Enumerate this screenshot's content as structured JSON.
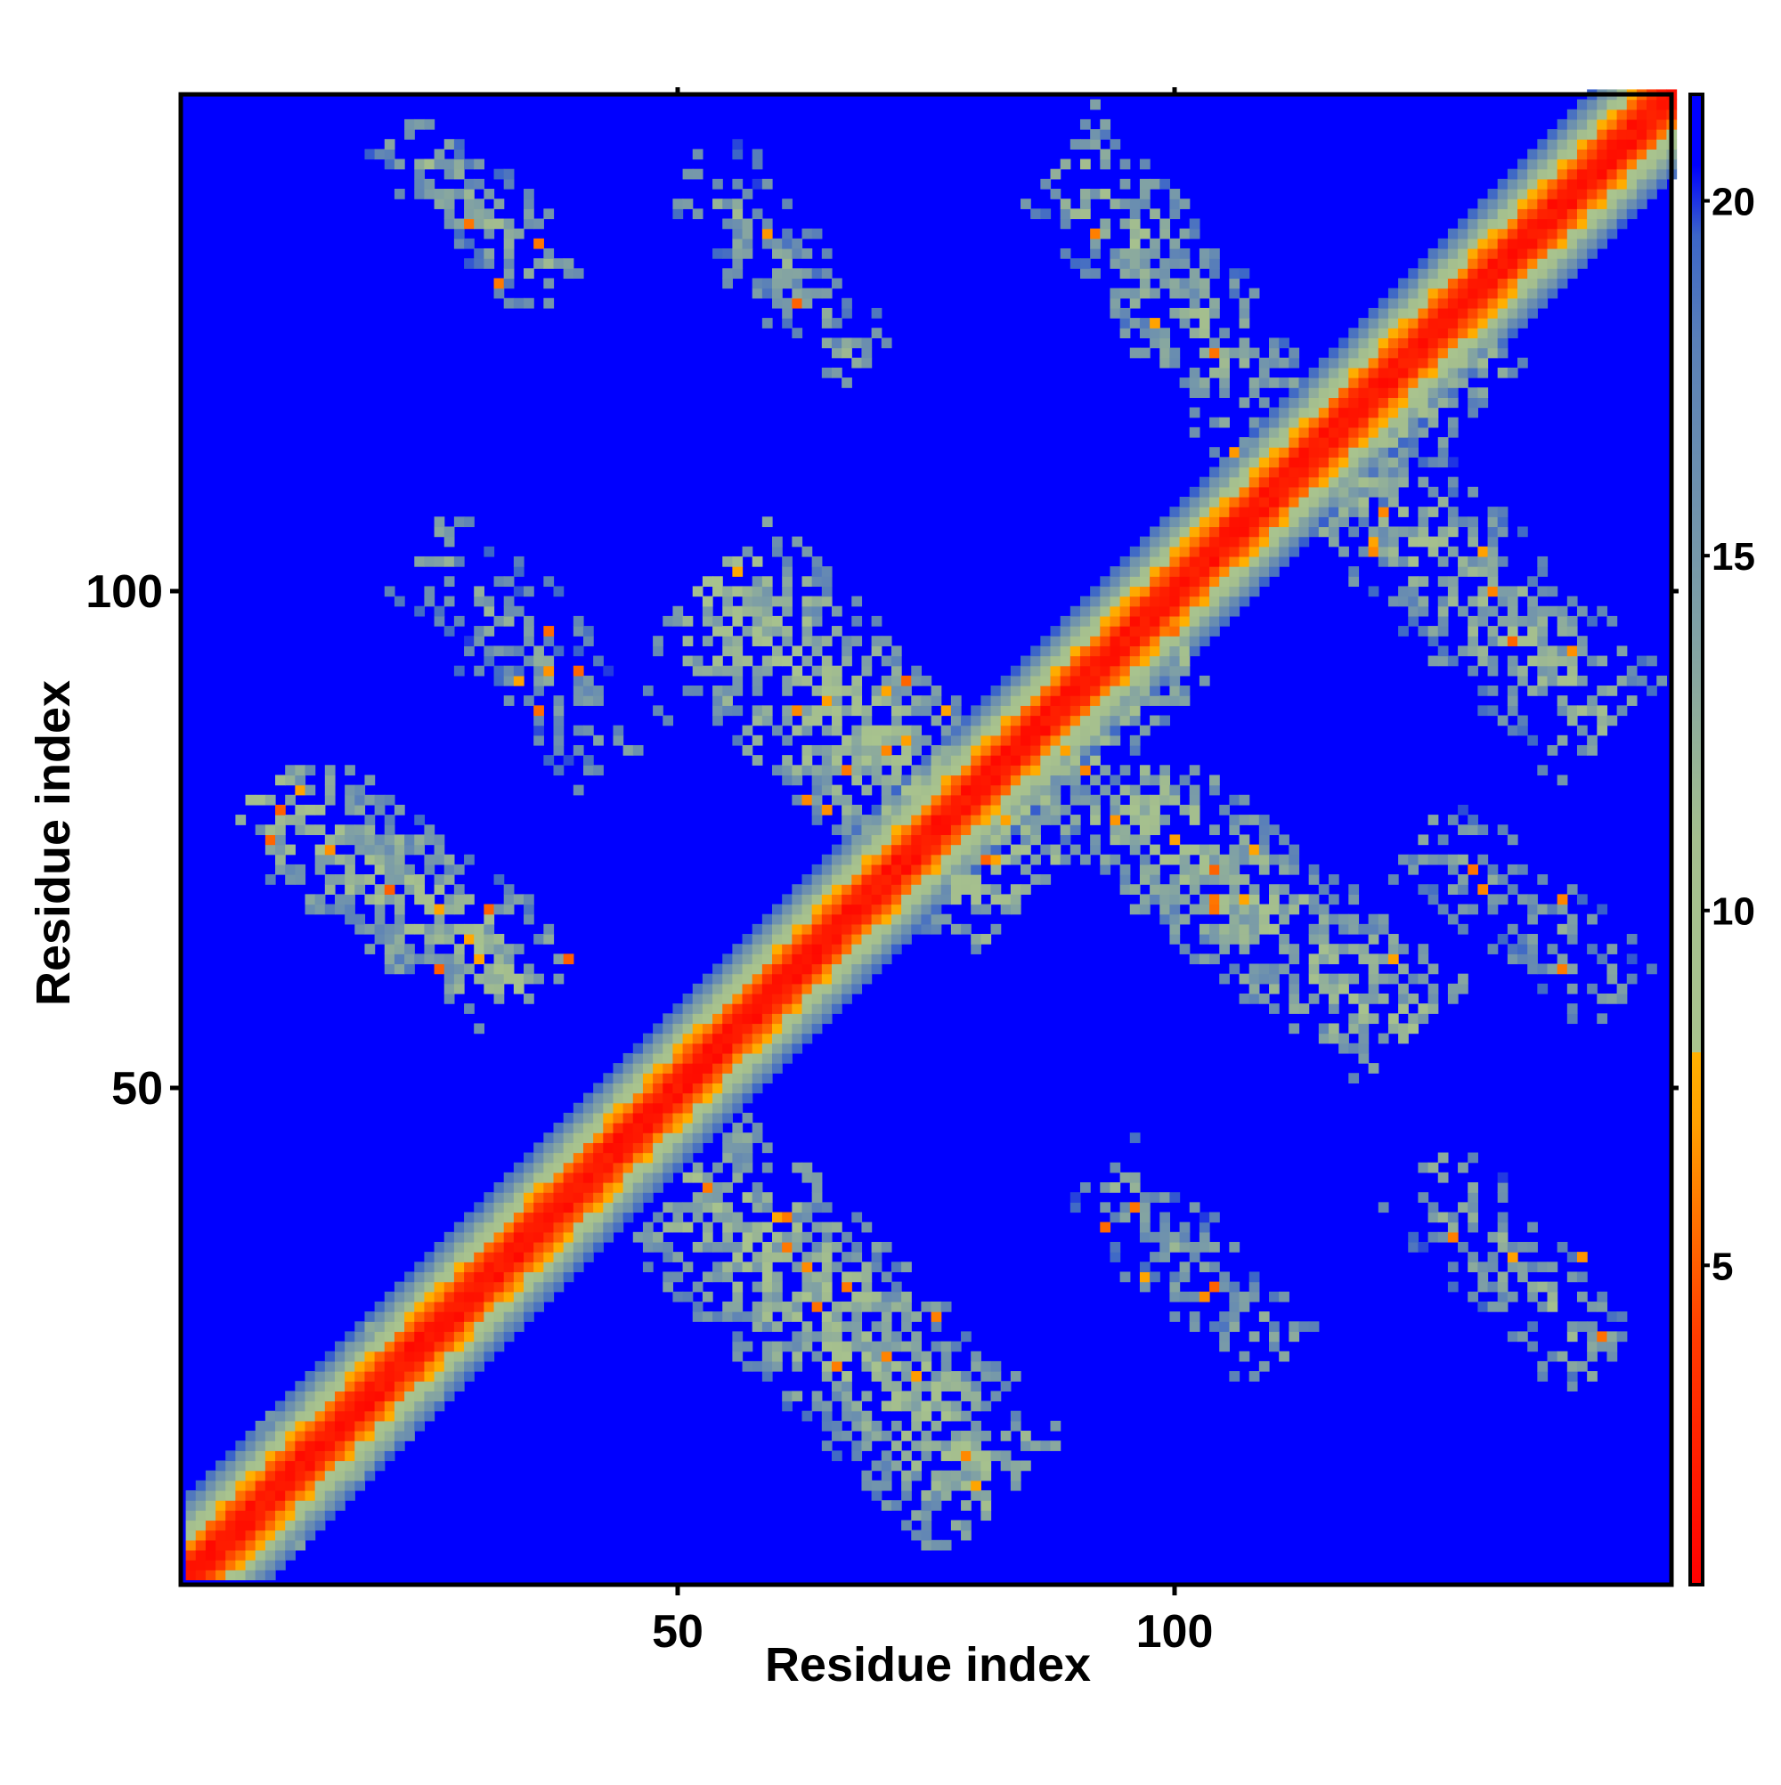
{
  "chart_data": {
    "type": "heatmap",
    "title": "",
    "xlabel": "Residue index",
    "ylabel": "Residue index",
    "n_residues": 150,
    "xlim": [
      1,
      150
    ],
    "ylim": [
      1,
      150
    ],
    "x_ticks": [
      {
        "value": 50,
        "label": "50"
      },
      {
        "value": 100,
        "label": "100"
      }
    ],
    "y_ticks": [
      {
        "value": 50,
        "label": "50"
      },
      {
        "value": 100,
        "label": "100"
      }
    ],
    "colorbar": {
      "range": [
        0.5,
        21.5
      ],
      "ticks": [
        {
          "value": 5,
          "label": "5"
        },
        {
          "value": 10,
          "label": "10"
        },
        {
          "value": 15,
          "label": "15"
        },
        {
          "value": 20,
          "label": "20"
        }
      ],
      "stops": [
        {
          "value": 0.5,
          "color": "#ff0000"
        },
        {
          "value": 4.0,
          "color": "#ff3c00"
        },
        {
          "value": 7.0,
          "color": "#ffa000"
        },
        {
          "value": 8.0,
          "color": "#ffb000"
        },
        {
          "value": 8.0,
          "color": "#a9c48e"
        },
        {
          "value": 11.0,
          "color": "#a4be8e"
        },
        {
          "value": 14.0,
          "color": "#7fa0a5"
        },
        {
          "value": 18.0,
          "color": "#5a80b8"
        },
        {
          "value": 19.5,
          "color": "#3c66c8"
        },
        {
          "value": 20.5,
          "color": "#0000ff"
        },
        {
          "value": 21.5,
          "color": "#0000ff"
        }
      ]
    },
    "value_cutoff": 20,
    "diagonal_band": {
      "width_residues": 8,
      "value_on_diagonal": 1,
      "value_at_edge": 19
    },
    "contact_regions": [
      {
        "kind": "anti",
        "x_range": [
          18,
          42
        ],
        "y_range": [
          127,
          150
        ],
        "mean": 13.5,
        "density": 0.62
      },
      {
        "kind": "anti",
        "x_range": [
          47,
          73
        ],
        "y_range": [
          118,
          148
        ],
        "mean": 14.0,
        "density": 0.55
      },
      {
        "kind": "anti",
        "x_range": [
          84,
          114
        ],
        "y_range": [
          112,
          150
        ],
        "mean": 12.5,
        "density": 0.72
      },
      {
        "kind": "anti",
        "x_range": [
          2,
          42
        ],
        "y_range": [
          55,
          85
        ],
        "mean": 11.5,
        "density": 0.82
      },
      {
        "kind": "anti",
        "x_range": [
          46,
          92
        ],
        "y_range": [
          62,
          108
        ],
        "mean": 11.0,
        "density": 0.86
      },
      {
        "kind": "anti",
        "x_range": [
          88,
          130
        ],
        "y_range": [
          50,
          85
        ],
        "mean": 11.5,
        "density": 0.84
      },
      {
        "kind": "anti",
        "x_range": [
          112,
          150
        ],
        "y_range": [
          80,
          118
        ],
        "mean": 12.5,
        "density": 0.75
      },
      {
        "kind": "anti",
        "x_range": [
          44,
          90
        ],
        "y_range": [
          2,
          48
        ],
        "mean": 11.5,
        "density": 0.84
      },
      {
        "kind": "anti",
        "x_range": [
          88,
          116
        ],
        "y_range": [
          18,
          46
        ],
        "mean": 14.0,
        "density": 0.55
      },
      {
        "kind": "anti",
        "x_range": [
          120,
          148
        ],
        "y_range": [
          18,
          46
        ],
        "mean": 13.5,
        "density": 0.62
      },
      {
        "kind": "anti",
        "x_range": [
          120,
          150
        ],
        "y_range": [
          55,
          80
        ],
        "mean": 14.0,
        "density": 0.55
      },
      {
        "kind": "anti",
        "x_range": [
          20,
          50
        ],
        "y_range": [
          78,
          110
        ],
        "mean": 14.5,
        "density": 0.5
      },
      {
        "kind": "par",
        "x_range": [
          2,
          30
        ],
        "y_range": [
          2,
          30
        ],
        "mean": 11.5,
        "density": 0.85
      },
      {
        "kind": "par",
        "x_range": [
          78,
          104
        ],
        "y_range": [
          72,
          100
        ],
        "mean": 11.0,
        "density": 0.85
      },
      {
        "kind": "par",
        "x_range": [
          108,
          136
        ],
        "y_range": [
          104,
          132
        ],
        "mean": 11.5,
        "density": 0.8
      }
    ]
  }
}
